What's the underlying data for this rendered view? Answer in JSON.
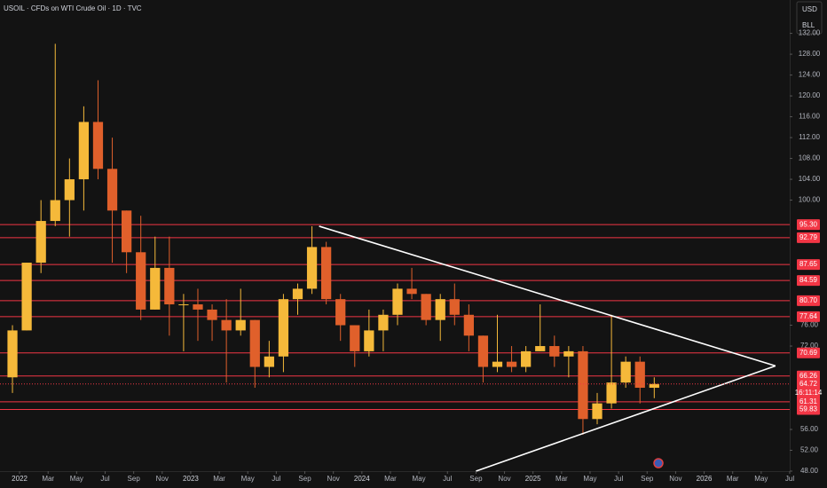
{
  "chart_data": {
    "type": "candlestick",
    "title": "USOIL · CFDs on WTI Crude Oil · 1D · TVC",
    "buttons": [
      "USD",
      "BLL"
    ],
    "x": [
      "2021-12",
      "2022-01",
      "2022-02",
      "2022-03",
      "2022-04",
      "2022-05",
      "2022-06",
      "2022-07",
      "2022-08",
      "2022-09",
      "2022-10",
      "2022-11",
      "2022-12",
      "2023-01",
      "2023-02",
      "2023-03",
      "2023-04",
      "2023-05",
      "2023-06",
      "2023-07",
      "2023-08",
      "2023-09",
      "2023-10",
      "2023-11",
      "2023-12",
      "2024-01",
      "2024-02",
      "2024-03",
      "2024-04",
      "2024-05",
      "2024-06",
      "2024-07",
      "2024-08",
      "2024-09",
      "2024-10",
      "2024-11",
      "2024-12",
      "2025-01",
      "2025-02",
      "2025-03",
      "2025-04",
      "2025-05",
      "2025-06",
      "2025-07",
      "2025-08",
      "2025-09"
    ],
    "open": [
      66,
      75,
      88,
      96,
      100,
      104,
      115,
      106,
      98,
      90,
      79,
      87,
      80,
      80,
      79,
      77,
      75,
      77,
      68,
      70,
      81,
      83,
      91,
      81,
      76,
      71,
      75,
      78,
      83,
      82,
      77,
      81,
      78,
      74,
      68,
      69,
      68,
      71,
      72,
      70,
      71,
      58,
      61,
      65,
      69,
      64
    ],
    "high": [
      76,
      88,
      100,
      130,
      108,
      118,
      123,
      112,
      98,
      97,
      93,
      93,
      82,
      83,
      80,
      81,
      83,
      77,
      73,
      82,
      84,
      95,
      92,
      82,
      76,
      79,
      79,
      84,
      87,
      82,
      82,
      84,
      80,
      74,
      78,
      72,
      72,
      80,
      74,
      72,
      72,
      63,
      78,
      70,
      70,
      66
    ],
    "low": [
      63,
      75,
      86,
      95,
      93,
      98,
      104,
      88,
      86,
      77,
      79,
      74,
      71,
      73,
      73,
      65,
      74,
      64,
      66,
      67,
      78,
      82,
      80,
      73,
      68,
      70,
      71,
      76,
      81,
      76,
      73,
      76,
      71,
      65,
      67,
      67,
      67,
      71,
      68,
      66,
      55,
      57,
      60,
      64,
      61,
      62
    ],
    "close": [
      75,
      88,
      96,
      100,
      104,
      115,
      106,
      98,
      90,
      79,
      87,
      80,
      80,
      79,
      77,
      75,
      77,
      68,
      70,
      81,
      83,
      91,
      81,
      76,
      71,
      75,
      78,
      83,
      82,
      77,
      81,
      78,
      74,
      68,
      69,
      68,
      71,
      72,
      70,
      71,
      58,
      61,
      65,
      69,
      64,
      64.72
    ],
    "up_color": "#f5b93a",
    "down_color": "#e0602b",
    "xlim": [
      "2021-12",
      "2026-07"
    ],
    "xticks": [
      {
        "value": "2022-01",
        "label": "2022"
      },
      {
        "value": "2022-03",
        "label": "Mar"
      },
      {
        "value": "2022-05",
        "label": "May"
      },
      {
        "value": "2022-07",
        "label": "Jul"
      },
      {
        "value": "2022-09",
        "label": "Sep"
      },
      {
        "value": "2022-11",
        "label": "Nov"
      },
      {
        "value": "2023-01",
        "label": "2023"
      },
      {
        "value": "2023-03",
        "label": "Mar"
      },
      {
        "value": "2023-05",
        "label": "May"
      },
      {
        "value": "2023-07",
        "label": "Jul"
      },
      {
        "value": "2023-09",
        "label": "Sep"
      },
      {
        "value": "2023-11",
        "label": "Nov"
      },
      {
        "value": "2024-01",
        "label": "2024"
      },
      {
        "value": "2024-03",
        "label": "Mar"
      },
      {
        "value": "2024-05",
        "label": "May"
      },
      {
        "value": "2024-07",
        "label": "Jul"
      },
      {
        "value": "2024-09",
        "label": "Sep"
      },
      {
        "value": "2024-11",
        "label": "Nov"
      },
      {
        "value": "2025-01",
        "label": "2025"
      },
      {
        "value": "2025-03",
        "label": "Mar"
      },
      {
        "value": "2025-05",
        "label": "May"
      },
      {
        "value": "2025-07",
        "label": "Jul"
      },
      {
        "value": "2025-09",
        "label": "Sep"
      },
      {
        "value": "2025-11",
        "label": "Nov"
      },
      {
        "value": "2026-01",
        "label": "2026"
      },
      {
        "value": "2026-03",
        "label": "Mar"
      },
      {
        "value": "2026-05",
        "label": "May"
      },
      {
        "value": "2026-07",
        "label": "Jul"
      }
    ],
    "ylim": [
      48,
      138.4
    ],
    "yticks": [
      {
        "value": 48,
        "label": "48.00"
      },
      {
        "value": 52,
        "label": "52.00"
      },
      {
        "value": 56,
        "label": "56.00"
      },
      {
        "value": 72,
        "label": "72.00"
      },
      {
        "value": 76,
        "label": "76.00"
      },
      {
        "value": 100,
        "label": "100.00"
      },
      {
        "value": 104,
        "label": "104.00"
      },
      {
        "value": 108,
        "label": "108.00"
      },
      {
        "value": 112,
        "label": "112.00"
      },
      {
        "value": 116,
        "label": "116.00"
      },
      {
        "value": 120,
        "label": "120.00"
      },
      {
        "value": 124,
        "label": "124.00"
      },
      {
        "value": 128,
        "label": "128.00"
      },
      {
        "value": 132,
        "label": "132.00"
      }
    ],
    "levels": [
      {
        "value": 95.3,
        "label": "95.30"
      },
      {
        "value": 92.79,
        "label": "92.79"
      },
      {
        "value": 87.65,
        "label": "87.65"
      },
      {
        "value": 84.59,
        "label": "84.59"
      },
      {
        "value": 80.7,
        "label": "80.70"
      },
      {
        "value": 77.64,
        "label": "77.64"
      },
      {
        "value": 70.69,
        "label": "70.69"
      },
      {
        "value": 66.26,
        "label": "66.26"
      },
      {
        "value": 61.31,
        "label": "61.31"
      },
      {
        "value": 59.83,
        "label": "59.83"
      }
    ],
    "level_color": "#f23645",
    "current_price": 64.72,
    "countdown": "16:11:14",
    "trendlines": [
      {
        "from": {
          "x": "2023-10",
          "y": 95
        },
        "to": {
          "x": "2026-06",
          "y": 68.2
        }
      },
      {
        "from": {
          "x": "2024-09",
          "y": 48
        },
        "to": {
          "x": "2026-06",
          "y": 68.2
        }
      }
    ]
  }
}
